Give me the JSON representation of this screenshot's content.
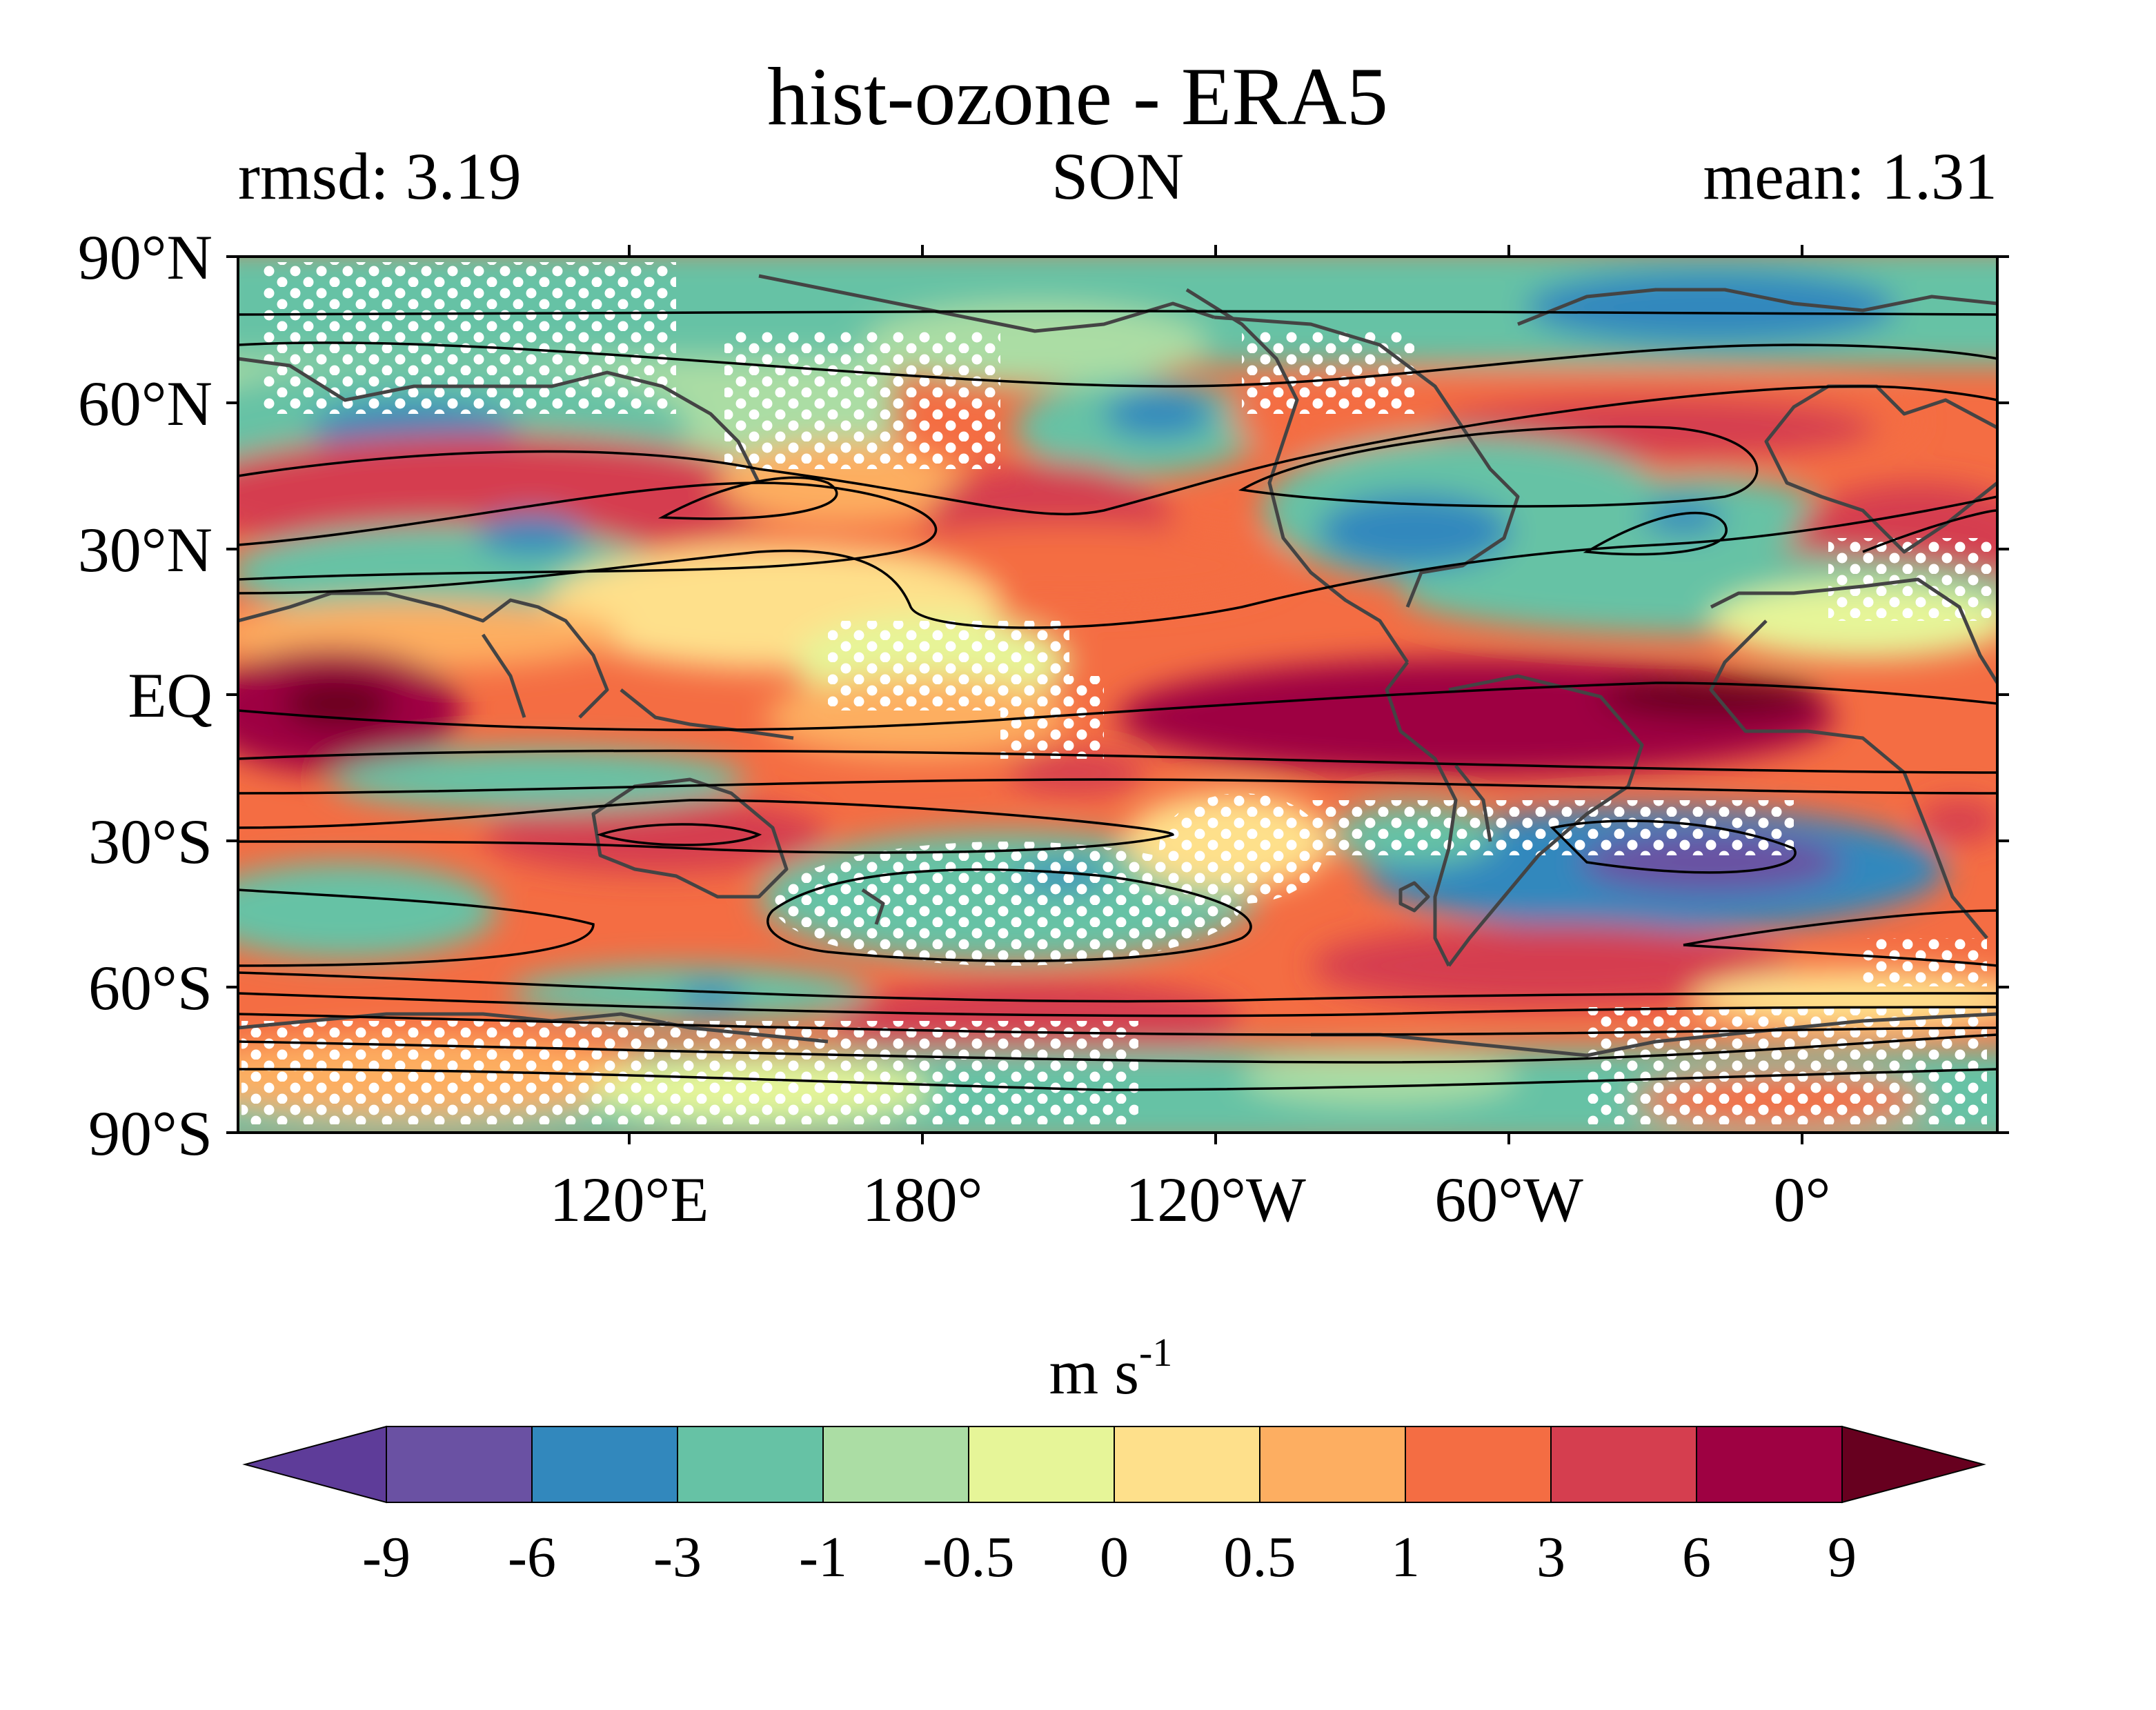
{
  "title": "hist-ozone - ERA5",
  "left_annotation": "rmsd: 3.19",
  "center_annotation": "SON",
  "right_annotation": "mean: 1.31",
  "colorbar": {
    "unit_base": "m s",
    "unit_exp": "-1",
    "levels": [
      "-9",
      "-6",
      "-3",
      "-1",
      "-0.5",
      "0",
      "0.5",
      "1",
      "3",
      "6",
      "9"
    ],
    "colors": [
      "#5e3c99",
      "#6a51a3",
      "#3288bd",
      "#66c2a5",
      "#abdda4",
      "#e6f598",
      "#fee08b",
      "#fdae61",
      "#f46d43",
      "#d53e4f",
      "#9e0142",
      "#67001f"
    ],
    "extend": "both"
  },
  "map": {
    "type": "filled-contour-map",
    "projection": "equirectangular",
    "lat_ticks": [
      "90°N",
      "60°N",
      "30°N",
      "EQ",
      "30°S",
      "60°S",
      "90°S"
    ],
    "lon_ticks": [
      "120°E",
      "180°",
      "120°W",
      "60°W",
      "0°"
    ],
    "lon_range": [
      40,
      400
    ],
    "lat_range": [
      -90,
      90
    ],
    "overlays": [
      "coastlines",
      "climatology contours (black)",
      "significance stippling (white dots)"
    ]
  }
}
